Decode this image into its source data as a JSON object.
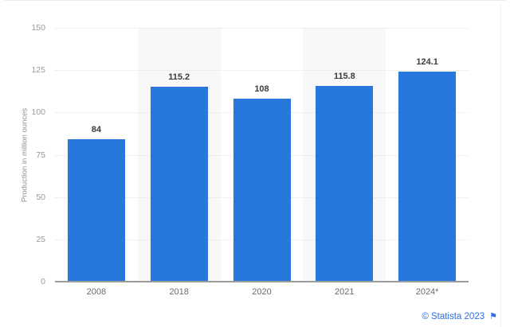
{
  "chart_data": {
    "type": "bar",
    "title": "",
    "xlabel": "",
    "ylabel": "Production in million ounces",
    "categories": [
      "2008",
      "2018",
      "2020",
      "2021",
      "2024*"
    ],
    "values": [
      84,
      115.2,
      108,
      115.8,
      124.1
    ],
    "value_labels": [
      "84",
      "115.2",
      "108",
      "115.8",
      "124.1"
    ],
    "yticks": [
      0,
      25,
      50,
      75,
      100,
      125,
      150
    ],
    "ylim": [
      0,
      150
    ],
    "grid": "horizontal-dotted",
    "legend": "none",
    "bar_color": "#2777dd",
    "band_color": "#f8f8f9",
    "banded_column_indexes": [
      1,
      3
    ]
  },
  "footer": {
    "copyright": "© Statista 2023",
    "flag_icon": "⚑"
  }
}
